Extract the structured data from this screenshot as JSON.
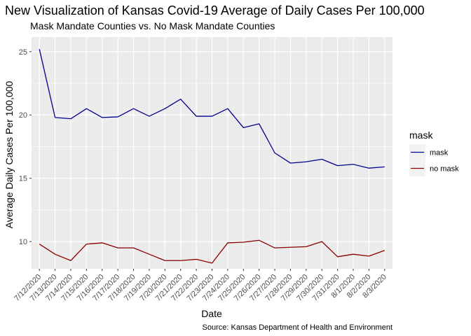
{
  "chart_data": {
    "type": "line",
    "title": "New Visualization of Kansas Covid-19 Average of Daily Cases Per 100,000",
    "subtitle": "Mask Mandate Counties vs. No Mask Mandate Counties",
    "xlabel": "Date",
    "ylabel": "Average Daily Cases Per 100,000",
    "caption": "Source: Kansas Department of Health and Environment",
    "legend_title": "mask",
    "legend_position": "right",
    "grid": true,
    "ylim": [
      7.85,
      26.15
    ],
    "yticks": [
      10,
      15,
      20,
      25
    ],
    "categories": [
      "7/12/2020",
      "7/13/2020",
      "7/14/2020",
      "7/15/2020",
      "7/16/2020",
      "7/17/2020",
      "7/18/2020",
      "7/19/2020",
      "7/20/2020",
      "7/21/2020",
      "7/22/2020",
      "7/23/2020",
      "7/24/2020",
      "7/25/2020",
      "7/26/2020",
      "7/27/2020",
      "7/28/2020",
      "7/29/2020",
      "7/30/2020",
      "7/31/2020",
      "8/1/2020",
      "8/2/2020",
      "8/3/2020"
    ],
    "series": [
      {
        "name": "mask",
        "color": "#00008b",
        "values": [
          25.2,
          19.8,
          19.7,
          20.5,
          19.8,
          19.85,
          20.5,
          19.9,
          20.5,
          21.25,
          19.9,
          19.9,
          20.5,
          19.0,
          19.3,
          17.0,
          16.2,
          16.3,
          16.5,
          16.0,
          16.1,
          15.8,
          15.9
        ]
      },
      {
        "name": "no mask",
        "color": "#8b0000",
        "values": [
          9.8,
          9.0,
          8.5,
          9.8,
          9.9,
          9.5,
          9.5,
          9.0,
          8.5,
          8.5,
          8.6,
          8.3,
          9.9,
          9.95,
          10.1,
          9.5,
          9.55,
          9.6,
          10.0,
          8.8,
          9.0,
          8.85,
          9.3
        ]
      }
    ]
  }
}
